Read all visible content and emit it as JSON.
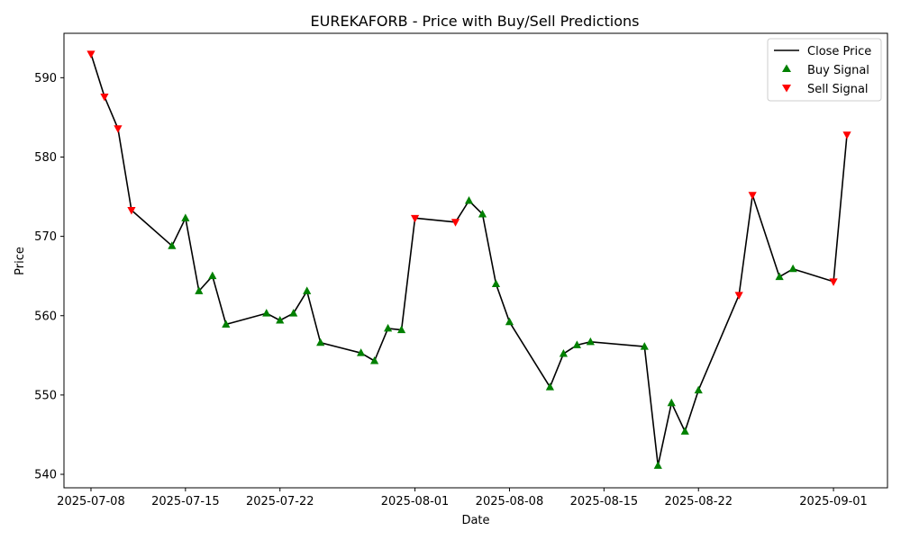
{
  "chart_data": {
    "type": "line",
    "title": "EUREKAFORB - Price with Buy/Sell Predictions",
    "xlabel": "Date",
    "ylabel": "Price",
    "ylim": [
      538.3,
      595.6
    ],
    "xlim": [
      "2025-07-06",
      "2025-09-05"
    ],
    "x_ticks": [
      "2025-07-08",
      "2025-07-15",
      "2025-07-22",
      "2025-08-01",
      "2025-08-08",
      "2025-08-15",
      "2025-08-22",
      "2025-09-01"
    ],
    "y_ticks": [
      540,
      550,
      560,
      570,
      580,
      590
    ],
    "legend_position": "top-right",
    "grid": false,
    "colors": {
      "line": "#000000",
      "buy": "#008000",
      "sell": "#ff0000"
    },
    "series": [
      {
        "name": "Close Price",
        "type": "line",
        "x": [
          "2025-07-08",
          "2025-07-09",
          "2025-07-10",
          "2025-07-11",
          "2025-07-14",
          "2025-07-15",
          "2025-07-16",
          "2025-07-17",
          "2025-07-18",
          "2025-07-21",
          "2025-07-22",
          "2025-07-23",
          "2025-07-24",
          "2025-07-25",
          "2025-07-28",
          "2025-07-29",
          "2025-07-30",
          "2025-07-31",
          "2025-08-01",
          "2025-08-04",
          "2025-08-05",
          "2025-08-06",
          "2025-08-07",
          "2025-08-08",
          "2025-08-11",
          "2025-08-12",
          "2025-08-13",
          "2025-08-14",
          "2025-08-18",
          "2025-08-19",
          "2025-08-20",
          "2025-08-21",
          "2025-08-22",
          "2025-08-25",
          "2025-08-26",
          "2025-08-28",
          "2025-08-29",
          "2025-09-01",
          "2025-09-02"
        ],
        "values": [
          593.0,
          587.6,
          583.6,
          573.3,
          568.8,
          572.3,
          563.1,
          565.0,
          558.9,
          560.3,
          559.4,
          560.3,
          563.1,
          556.6,
          555.3,
          554.3,
          558.4,
          558.2,
          572.3,
          571.8,
          574.5,
          572.8,
          564.0,
          559.2,
          551.0,
          555.2,
          556.3,
          556.7,
          556.1,
          541.1,
          549.0,
          545.4,
          550.6,
          562.6,
          575.2,
          564.9,
          565.9,
          564.3,
          582.8
        ]
      },
      {
        "name": "Buy Signal",
        "type": "scatter",
        "marker": "triangle-up",
        "x": [
          "2025-07-14",
          "2025-07-15",
          "2025-07-16",
          "2025-07-17",
          "2025-07-18",
          "2025-07-21",
          "2025-07-22",
          "2025-07-23",
          "2025-07-24",
          "2025-07-25",
          "2025-07-28",
          "2025-07-29",
          "2025-07-30",
          "2025-07-31",
          "2025-08-05",
          "2025-08-06",
          "2025-08-07",
          "2025-08-08",
          "2025-08-11",
          "2025-08-12",
          "2025-08-13",
          "2025-08-14",
          "2025-08-18",
          "2025-08-19",
          "2025-08-20",
          "2025-08-21",
          "2025-08-22",
          "2025-08-28",
          "2025-08-29"
        ],
        "values": [
          568.8,
          572.3,
          563.1,
          565.0,
          558.9,
          560.3,
          559.4,
          560.3,
          563.1,
          556.6,
          555.3,
          554.3,
          558.4,
          558.2,
          574.5,
          572.8,
          564.0,
          559.2,
          551.0,
          555.2,
          556.3,
          556.7,
          556.1,
          541.1,
          549.0,
          545.4,
          550.6,
          564.9,
          565.9
        ]
      },
      {
        "name": "Sell Signal",
        "type": "scatter",
        "marker": "triangle-down",
        "x": [
          "2025-07-08",
          "2025-07-09",
          "2025-07-10",
          "2025-07-11",
          "2025-08-01",
          "2025-08-04",
          "2025-08-25",
          "2025-08-26",
          "2025-09-01",
          "2025-09-02"
        ],
        "values": [
          593.0,
          587.6,
          583.6,
          573.3,
          572.3,
          571.8,
          562.6,
          575.2,
          564.3,
          582.8
        ]
      }
    ]
  }
}
